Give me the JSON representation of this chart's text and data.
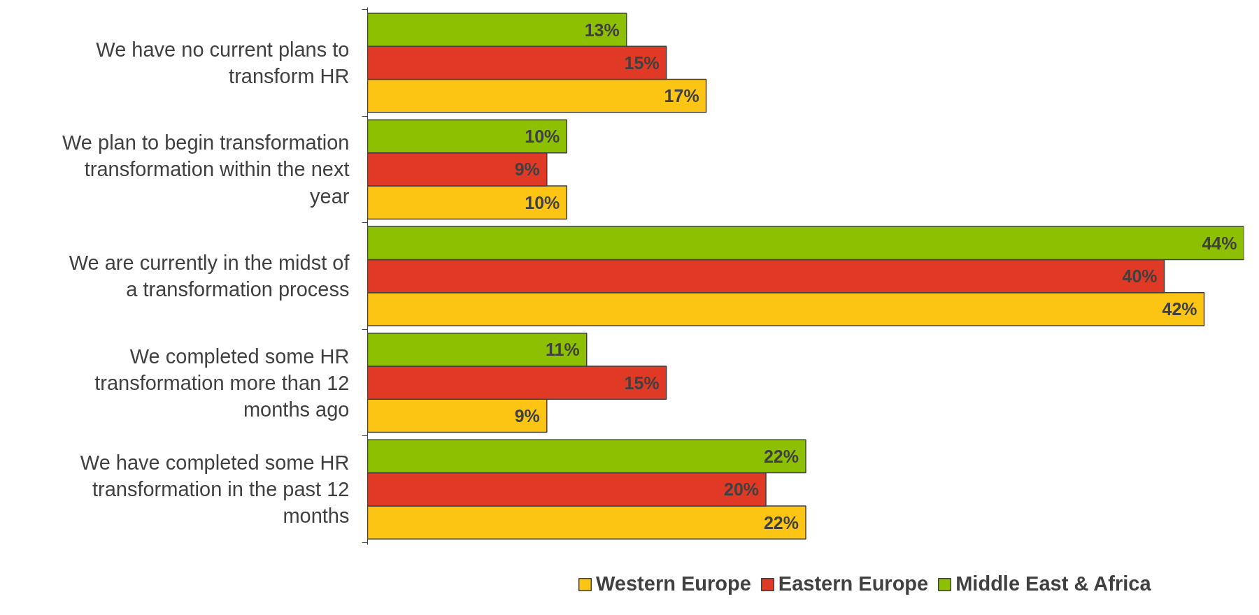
{
  "chart_data": {
    "type": "bar",
    "orientation": "horizontal",
    "categories": [
      "We have no current plans to transform HR",
      "We plan to begin transformation transformation within the next year",
      "We are currently in the midst of a transformation process",
      "We completed some HR transformation more than 12 months ago",
      "We have completed some HR transformation in the past 12 months"
    ],
    "series": [
      {
        "name": "Western Europe",
        "color": "#fcc514",
        "values": [
          17,
          10,
          42,
          9,
          22
        ],
        "value_labels": [
          "17%",
          "10%",
          "42%",
          "9%",
          "22%"
        ]
      },
      {
        "name": "Eastern Europe",
        "color": "#e03a27",
        "values": [
          15,
          9,
          40,
          15,
          20
        ],
        "value_labels": [
          "15%",
          "9%",
          "40%",
          "15%",
          "20%"
        ]
      },
      {
        "name": "Middle East & Africa",
        "color": "#8dc000",
        "values": [
          13,
          10,
          44,
          11,
          22
        ],
        "value_labels": [
          "13%",
          "10%",
          "44%",
          "11%",
          "22%"
        ]
      }
    ],
    "legend": "bottom",
    "grid": false
  }
}
